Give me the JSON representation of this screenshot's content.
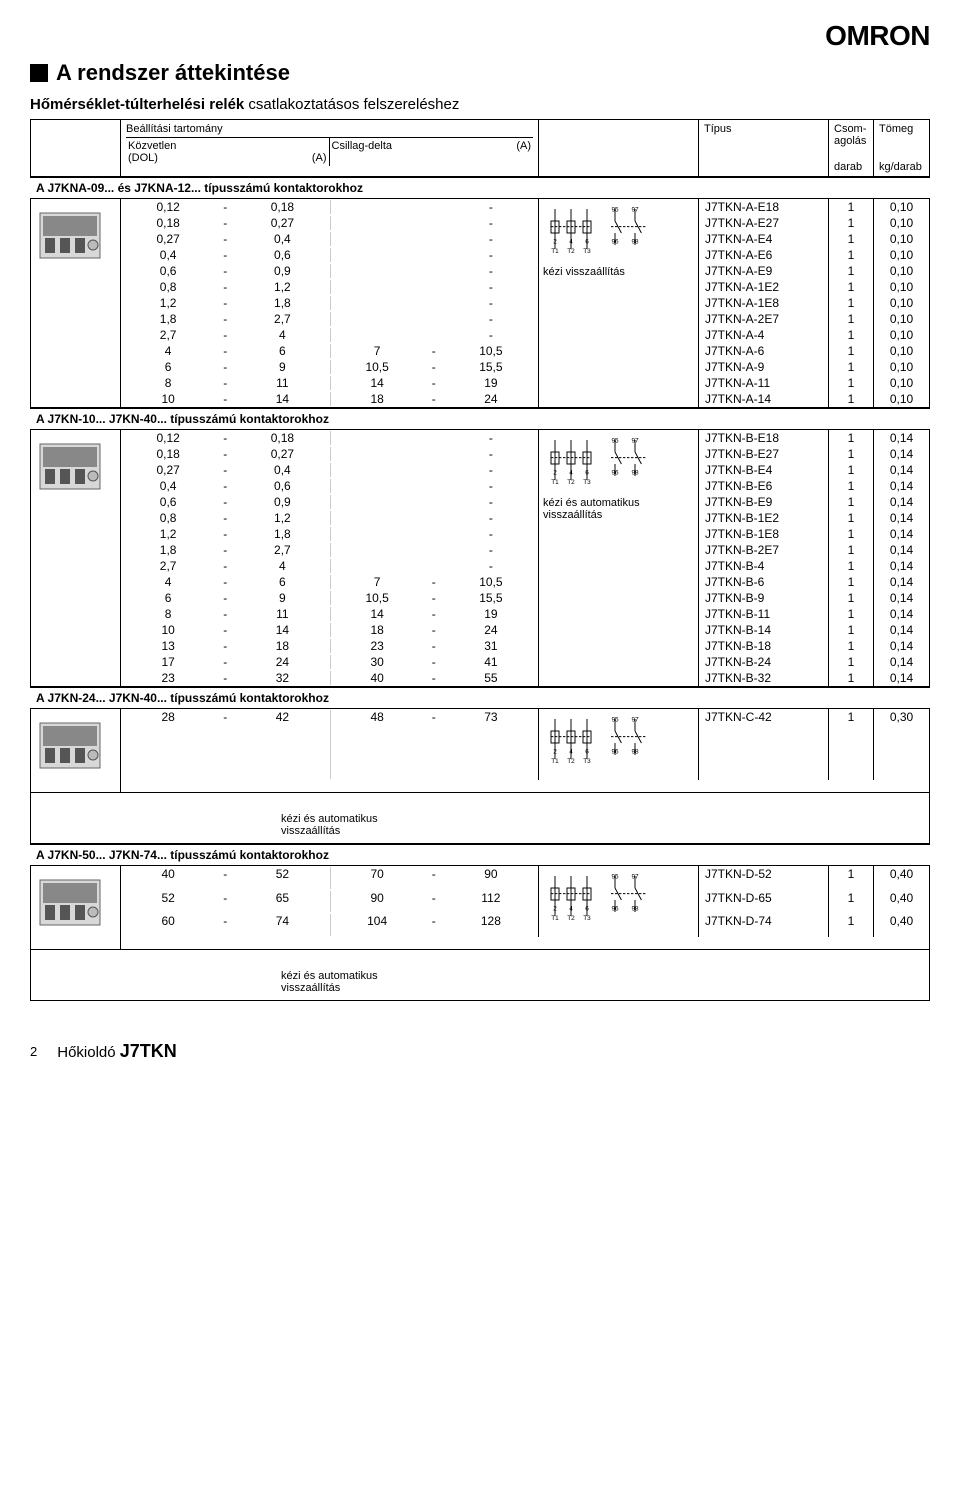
{
  "brand": "OMRON",
  "title": "A rendszer áttekintése",
  "subtitle_bold": "Hőmérséklet-túlterhelési relék",
  "subtitle_rest": " csatlakoztatásos felszereléshez",
  "header": {
    "col_range": "Beállítási tartomány",
    "col_dol": "Közvetlen\n(DOL)",
    "col_unit_a": "(A)",
    "col_sd": "Csillag-delta",
    "col_diag": "",
    "col_type": "Típus",
    "col_pkg": "Csom-\nagolás",
    "col_wt": "Tömeg",
    "col_pkg_unit": "darab",
    "col_wt_unit": "kg/darab"
  },
  "sections": [
    {
      "label": "A J7KNA-09... és J7KNA-12... típusszámú kontaktorokhoz",
      "diag_label": "kézi visszaállítás",
      "weight": "0,10",
      "rows": [
        {
          "d1": "0,12",
          "d2": "0,18",
          "s1": "",
          "s2": "",
          "type": "J7TKN-A-E18",
          "pkg": "1"
        },
        {
          "d1": "0,18",
          "d2": "0,27",
          "s1": "",
          "s2": "",
          "type": "J7TKN-A-E27",
          "pkg": "1"
        },
        {
          "d1": "0,27",
          "d2": "0,4",
          "s1": "",
          "s2": "",
          "type": "J7TKN-A-E4",
          "pkg": "1"
        },
        {
          "d1": "0,4",
          "d2": "0,6",
          "s1": "",
          "s2": "",
          "type": "J7TKN-A-E6",
          "pkg": "1"
        },
        {
          "d1": "0,6",
          "d2": "0,9",
          "s1": "",
          "s2": "",
          "type": "J7TKN-A-E9",
          "pkg": "1"
        },
        {
          "d1": "0,8",
          "d2": "1,2",
          "s1": "",
          "s2": "",
          "type": "J7TKN-A-1E2",
          "pkg": "1"
        },
        {
          "d1": "1,2",
          "d2": "1,8",
          "s1": "",
          "s2": "",
          "type": "J7TKN-A-1E8",
          "pkg": "1"
        },
        {
          "d1": "1,8",
          "d2": "2,7",
          "s1": "",
          "s2": "",
          "type": "J7TKN-A-2E7",
          "pkg": "1"
        },
        {
          "d1": "2,7",
          "d2": "4",
          "s1": "",
          "s2": "",
          "type": "J7TKN-A-4",
          "pkg": "1"
        },
        {
          "d1": "4",
          "d2": "6",
          "s1": "7",
          "s2": "10,5",
          "type": "J7TKN-A-6",
          "pkg": "1"
        },
        {
          "d1": "6",
          "d2": "9",
          "s1": "10,5",
          "s2": "15,5",
          "type": "J7TKN-A-9",
          "pkg": "1"
        },
        {
          "d1": "8",
          "d2": "11",
          "s1": "14",
          "s2": "19",
          "type": "J7TKN-A-11",
          "pkg": "1"
        },
        {
          "d1": "10",
          "d2": "14",
          "s1": "18",
          "s2": "24",
          "type": "J7TKN-A-14",
          "pkg": "1"
        }
      ]
    },
    {
      "label": "A J7KN-10... J7KN-40... típusszámú kontaktorokhoz",
      "diag_label": "kézi és automatikus\nvisszaállítás",
      "weight": "0,14",
      "rows": [
        {
          "d1": "0,12",
          "d2": "0,18",
          "s1": "",
          "s2": "",
          "type": "J7TKN-B-E18",
          "pkg": "1"
        },
        {
          "d1": "0,18",
          "d2": "0,27",
          "s1": "",
          "s2": "",
          "type": "J7TKN-B-E27",
          "pkg": "1"
        },
        {
          "d1": "0,27",
          "d2": "0,4",
          "s1": "",
          "s2": "",
          "type": "J7TKN-B-E4",
          "pkg": "1"
        },
        {
          "d1": "0,4",
          "d2": "0,6",
          "s1": "",
          "s2": "",
          "type": "J7TKN-B-E6",
          "pkg": "1"
        },
        {
          "d1": "0,6",
          "d2": "0,9",
          "s1": "",
          "s2": "",
          "type": "J7TKN-B-E9",
          "pkg": "1"
        },
        {
          "d1": "0,8",
          "d2": "1,2",
          "s1": "",
          "s2": "",
          "type": "J7TKN-B-1E2",
          "pkg": "1"
        },
        {
          "d1": "1,2",
          "d2": "1,8",
          "s1": "",
          "s2": "",
          "type": "J7TKN-B-1E8",
          "pkg": "1"
        },
        {
          "d1": "1,8",
          "d2": "2,7",
          "s1": "",
          "s2": "",
          "type": "J7TKN-B-2E7",
          "pkg": "1"
        },
        {
          "d1": "2,7",
          "d2": "4",
          "s1": "",
          "s2": "",
          "type": "J7TKN-B-4",
          "pkg": "1"
        },
        {
          "d1": "4",
          "d2": "6",
          "s1": "7",
          "s2": "10,5",
          "type": "J7TKN-B-6",
          "pkg": "1"
        },
        {
          "d1": "6",
          "d2": "9",
          "s1": "10,5",
          "s2": "15,5",
          "type": "J7TKN-B-9",
          "pkg": "1"
        },
        {
          "d1": "8",
          "d2": "11",
          "s1": "14",
          "s2": "19",
          "type": "J7TKN-B-11",
          "pkg": "1"
        },
        {
          "d1": "10",
          "d2": "14",
          "s1": "18",
          "s2": "24",
          "type": "J7TKN-B-14",
          "pkg": "1"
        },
        {
          "d1": "13",
          "d2": "18",
          "s1": "23",
          "s2": "31",
          "type": "J7TKN-B-18",
          "pkg": "1"
        },
        {
          "d1": "17",
          "d2": "24",
          "s1": "30",
          "s2": "41",
          "type": "J7TKN-B-24",
          "pkg": "1"
        },
        {
          "d1": "23",
          "d2": "32",
          "s1": "40",
          "s2": "55",
          "type": "J7TKN-B-32",
          "pkg": "1"
        }
      ]
    },
    {
      "label": "A J7KN-24... J7KN-40... típusszámú kontaktorokhoz",
      "diag_label": "kézi és automatikus\nvisszaállítás",
      "diag_below": true,
      "weight": "0,30",
      "rows": [
        {
          "d1": "28",
          "d2": "42",
          "s1": "48",
          "s2": "73",
          "type": "J7TKN-C-42",
          "pkg": "1"
        }
      ]
    },
    {
      "label": "A J7KN-50... J7KN-74... típusszámú kontaktorokhoz",
      "diag_label": "kézi és automatikus\nvisszaállítás",
      "diag_below": true,
      "weight": "0,40",
      "rows": [
        {
          "d1": "40",
          "d2": "52",
          "s1": "70",
          "s2": "90",
          "type": "J7TKN-D-52",
          "pkg": "1"
        },
        {
          "d1": "52",
          "d2": "65",
          "s1": "90",
          "s2": "112",
          "type": "J7TKN-D-65",
          "pkg": "1"
        },
        {
          "d1": "60",
          "d2": "74",
          "s1": "104",
          "s2": "128",
          "type": "J7TKN-D-74",
          "pkg": "1"
        }
      ]
    }
  ],
  "diagram": {
    "top_labels": [
      "95",
      "97"
    ],
    "mid_labels": [
      "2",
      "4",
      "6",
      "96",
      "98"
    ],
    "bot_labels": [
      "T1",
      "T2",
      "T3"
    ]
  },
  "footer": {
    "page": "2",
    "product_prefix": "Hőkioldó ",
    "product": "J7TKN"
  }
}
